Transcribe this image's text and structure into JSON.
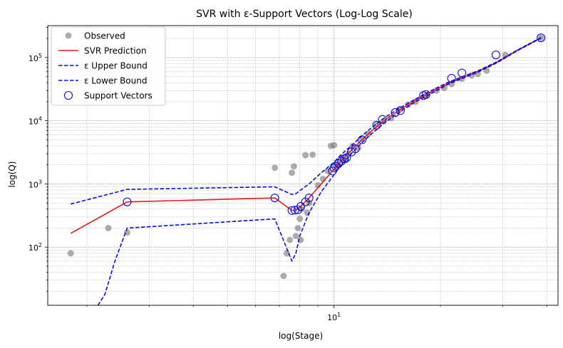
{
  "chart_data": {
    "type": "scatter",
    "title": "SVR with ε-Support Vectors (Log-Log Scale)",
    "xlabel": "log(Stage)",
    "ylabel": "log(Q)",
    "xscale": "log",
    "yscale": "log",
    "xlim": [
      1.55,
      43
    ],
    "ylim": [
      12,
      320000
    ],
    "grid": true,
    "x_tick_labels": [
      {
        "value": 10,
        "label": "10",
        "exp": "1"
      }
    ],
    "y_tick_labels": [
      {
        "value": 100,
        "label": "10",
        "exp": "2"
      },
      {
        "value": 1000,
        "label": "10",
        "exp": "3"
      },
      {
        "value": 10000,
        "label": "10",
        "exp": "4"
      },
      {
        "value": 100000,
        "label": "10",
        "exp": "5"
      }
    ],
    "legend": {
      "position": "top-left",
      "entries": [
        "Observed",
        "SVR Prediction",
        "ε Upper Bound",
        "ε Lower Bound",
        "Support Vectors"
      ]
    },
    "colors": {
      "observed": "#808080",
      "prediction": "#e8191a",
      "bounds": "#0d0ddc",
      "support": "#1010d0"
    },
    "series": [
      {
        "name": "Observed",
        "kind": "points",
        "x": [
          1.8,
          2.3,
          2.6,
          6.8,
          7.2,
          7.35,
          7.5,
          7.6,
          7.7,
          7.8,
          7.9,
          8.0,
          8.05,
          8.1,
          8.3,
          8.4,
          8.5,
          8.7,
          9.0,
          9.3,
          9.6,
          9.8,
          10.0,
          10.1,
          10.2,
          10.4,
          10.6,
          10.8,
          11.0,
          11.3,
          11.7,
          12.0,
          12.5,
          13.2,
          13.8,
          14.5,
          15.4,
          16.2,
          17.0,
          18.2,
          19.5,
          20.5,
          21.5,
          23.0,
          24.5,
          25.5,
          27.0,
          30.5,
          38.5
        ],
        "y": [
          80,
          200,
          170,
          1800,
          35,
          80,
          130,
          1500,
          1900,
          150,
          200,
          280,
          130,
          400,
          2850,
          350,
          500,
          2900,
          950,
          1200,
          1600,
          4000,
          4100,
          2000,
          1900,
          2200,
          2600,
          2400,
          3000,
          4000,
          3700,
          5200,
          6200,
          8500,
          9800,
          11000,
          15000,
          18000,
          20000,
          25000,
          30000,
          33000,
          38000,
          46000,
          52000,
          55000,
          62000,
          110000,
          205000
        ]
      },
      {
        "name": "SVR Prediction",
        "kind": "line",
        "x": [
          1.8,
          2.6,
          6.8,
          7.6,
          7.8,
          8.0,
          8.5,
          9.2,
          10.0,
          10.4,
          10.8,
          11.3,
          12.0,
          12.8,
          14.0,
          15.4,
          17.0,
          18.5,
          21.0,
          23.0,
          25.5,
          29.0,
          33.0,
          38.5
        ],
        "y": [
          165,
          520,
          600,
          380,
          385,
          430,
          600,
          1000,
          1700,
          2200,
          2800,
          3600,
          5000,
          7000,
          10500,
          15000,
          21000,
          27000,
          39000,
          48000,
          60000,
          85000,
          130000,
          205000
        ]
      },
      {
        "name": "ε Upper Bound",
        "kind": "line",
        "x": [
          1.8,
          2.6,
          6.8,
          7.6,
          7.8,
          8.0,
          8.5,
          9.2,
          10.0,
          10.4,
          10.8,
          11.3,
          12.0,
          12.8,
          14.0,
          15.4,
          17.0,
          18.5,
          21.0,
          23.0,
          25.5,
          29.0,
          33.0,
          38.5
        ],
        "y": [
          480,
          820,
          900,
          680,
          700,
          780,
          1000,
          1500,
          2200,
          2800,
          3400,
          4200,
          5800,
          7800,
          11500,
          16000,
          22000,
          28500,
          40500,
          49500,
          61500,
          86500,
          131500,
          207000
        ]
      },
      {
        "name": "ε Lower Bound",
        "kind": "line",
        "x": [
          2.15,
          2.25,
          2.4,
          2.6,
          6.8,
          7.6,
          7.8,
          8.0,
          8.5,
          9.2,
          10.0,
          10.4,
          10.8,
          11.3,
          12.0,
          12.8,
          14.0,
          15.4,
          17.0,
          18.5,
          21.0,
          23.0,
          25.5,
          29.0,
          33.0,
          38.5
        ],
        "y": [
          12,
          18,
          60,
          200,
          280,
          60,
          80,
          150,
          350,
          750,
          1400,
          1900,
          2400,
          3200,
          4500,
          6300,
          9600,
          14000,
          20000,
          25500,
          37500,
          46500,
          58500,
          83500,
          128500,
          203000
        ]
      },
      {
        "name": "Support Vectors",
        "kind": "markers",
        "x": [
          2.6,
          6.8,
          7.6,
          7.75,
          7.9,
          8.05,
          8.3,
          8.5,
          9.9,
          10.0,
          10.1,
          10.3,
          10.5,
          10.7,
          10.85,
          11.2,
          11.5,
          12.0,
          13.2,
          13.7,
          14.9,
          15.4,
          17.9,
          18.2,
          21.5,
          23.0,
          28.7,
          38.5
        ],
        "y": [
          520,
          600,
          380,
          385,
          390,
          440,
          520,
          600,
          1600,
          1800,
          1900,
          2100,
          2300,
          2500,
          2600,
          3200,
          3600,
          5000,
          8500,
          10500,
          13500,
          14500,
          25000,
          26000,
          47000,
          57000,
          110000,
          205000
        ]
      }
    ]
  }
}
